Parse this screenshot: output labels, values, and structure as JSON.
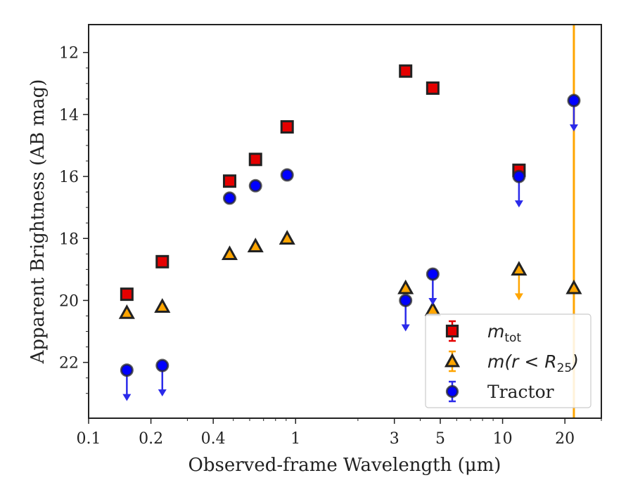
{
  "chart_data": {
    "type": "scatter",
    "xlabel": "Observed-frame Wavelength (μm)",
    "ylabel": "Apparent Brightness (AB mag)",
    "xscale": "log",
    "xlim": [
      0.1,
      30
    ],
    "ylim": [
      23.8,
      11.1
    ],
    "y_inverted": true,
    "x_ticks": [
      0.1,
      0.2,
      0.4,
      1,
      3,
      5,
      10,
      20
    ],
    "x_tick_labels": [
      "0.1",
      "0.2",
      "0.4",
      "1",
      "3",
      "5",
      "10",
      "20"
    ],
    "y_ticks": [
      12,
      14,
      16,
      18,
      20,
      22
    ],
    "y_tick_labels": [
      "12",
      "14",
      "16",
      "18",
      "20",
      "22"
    ],
    "grid": false,
    "legend_position": "bottom-right",
    "vline": {
      "x": 22.1,
      "color": "#FFA500"
    },
    "series": [
      {
        "name": "m_tot",
        "marker": "square",
        "color": "#E50000",
        "points": [
          {
            "x": 0.153,
            "y": 19.8
          },
          {
            "x": 0.227,
            "y": 18.75
          },
          {
            "x": 0.48,
            "y": 16.15
          },
          {
            "x": 0.64,
            "y": 15.45
          },
          {
            "x": 0.91,
            "y": 14.4
          },
          {
            "x": 3.4,
            "y": 12.6
          },
          {
            "x": 4.6,
            "y": 13.15
          },
          {
            "x": 12.0,
            "y": 15.8
          }
        ]
      },
      {
        "name": "m(r<R25)",
        "marker": "triangle",
        "color": "#FFA500",
        "points": [
          {
            "x": 0.153,
            "y": 20.4
          },
          {
            "x": 0.227,
            "y": 20.2
          },
          {
            "x": 0.48,
            "y": 18.5
          },
          {
            "x": 0.64,
            "y": 18.25
          },
          {
            "x": 0.91,
            "y": 18.0
          },
          {
            "x": 3.4,
            "y": 19.6
          },
          {
            "x": 4.6,
            "y": 20.3
          },
          {
            "x": 12.0,
            "y": 19.0,
            "upper_limit": true
          },
          {
            "x": 22.1,
            "y": 19.6
          }
        ]
      },
      {
        "name": "Tractor",
        "marker": "circle",
        "color": "#0000FF",
        "points": [
          {
            "x": 0.153,
            "y": 22.25,
            "upper_limit": true
          },
          {
            "x": 0.227,
            "y": 22.1,
            "upper_limit": true
          },
          {
            "x": 0.48,
            "y": 16.7
          },
          {
            "x": 0.64,
            "y": 16.3
          },
          {
            "x": 0.91,
            "y": 15.95
          },
          {
            "x": 3.4,
            "y": 20.0,
            "upper_limit": true
          },
          {
            "x": 4.6,
            "y": 19.15,
            "upper_limit": true
          },
          {
            "x": 12.0,
            "y": 16.0,
            "upper_limit": true
          },
          {
            "x": 22.1,
            "y": 13.55,
            "upper_limit": true
          }
        ]
      }
    ],
    "legend": [
      {
        "label_main": "m",
        "label_sub": "tot",
        "marker": "square",
        "color": "#E50000"
      },
      {
        "label_main": "m(r < R",
        "label_sub": "25",
        "label_tail": ")",
        "marker": "triangle",
        "color": "#FFA500"
      },
      {
        "label_main": "Tractor",
        "marker": "circle",
        "color": "#0000FF"
      }
    ]
  }
}
